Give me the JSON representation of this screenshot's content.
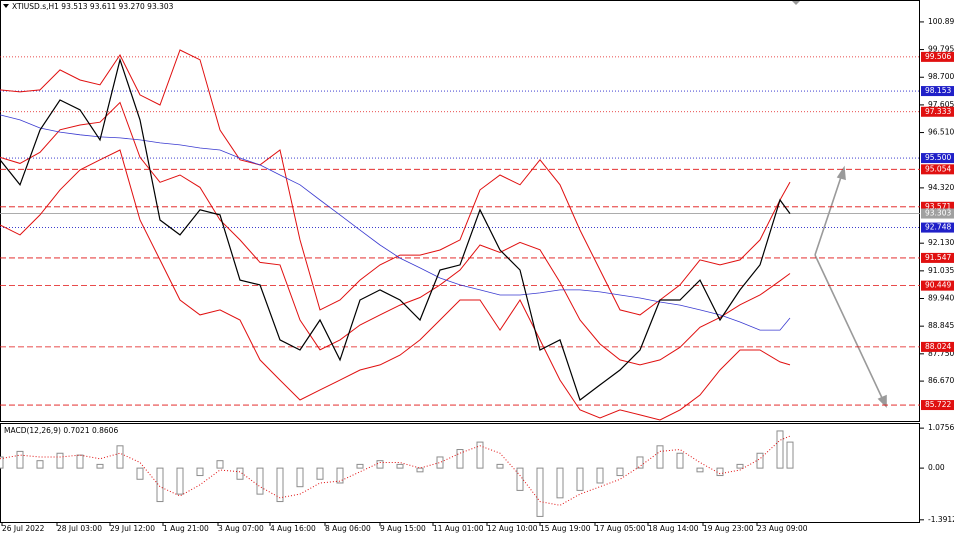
{
  "chart_data": [
    {
      "type": "line",
      "title": "XTIUSD.s,H1  93.513 93.611 93.270 93.303",
      "xlim": [
        0,
        460
      ],
      "x": [
        0,
        10,
        20,
        30,
        40,
        50,
        60,
        70,
        80,
        90,
        100,
        110,
        120,
        130,
        140,
        150,
        160,
        170,
        180,
        190,
        200,
        210,
        220,
        230,
        240,
        250,
        260,
        270,
        280,
        290,
        300,
        310,
        320,
        330,
        340,
        350,
        360,
        370,
        380,
        390,
        395
      ],
      "xticks": [
        {
          "value": 1,
          "label": "26 Jul 2022"
        },
        {
          "value": 28.5,
          "label": "28 Jul 03:00"
        },
        {
          "value": 55,
          "label": "29 Jul 12:00"
        },
        {
          "value": 81.5,
          "label": "1 Aug 21:00"
        },
        {
          "value": 109,
          "label": "3 Aug 07:00"
        },
        {
          "value": 135,
          "label": "4 Aug 16:00"
        },
        {
          "value": 162.5,
          "label": "8 Aug 06:00"
        },
        {
          "value": 190,
          "label": "9 Aug 15:00"
        },
        {
          "value": 216.5,
          "label": "11 Aug 01:00"
        },
        {
          "value": 243.5,
          "label": "12 Aug 10:00"
        },
        {
          "value": 270,
          "label": "15 Aug 19:00"
        },
        {
          "value": 297.5,
          "label": "17 Aug 05:00"
        },
        {
          "value": 324,
          "label": "18 Aug 14:00"
        },
        {
          "value": 351.5,
          "label": "19 Aug 23:00"
        },
        {
          "value": 378.5,
          "label": "23 Aug 09:00"
        }
      ],
      "ylim": [
        85.13,
        101.56
      ],
      "yticks": [
        {
          "value": 100.89,
          "label": "100.890"
        },
        99.795,
        {
          "value": 98.7,
          "label": "98.700"
        },
        97.605,
        {
          "value": 96.51,
          "label": "96.510"
        },
        {
          "value": 94.32,
          "label": "94.320"
        },
        {
          "value": 92.13,
          "label": "92.130"
        },
        91.035,
        {
          "value": 89.94,
          "label": "89.940"
        },
        88.845,
        {
          "value": 87.75,
          "label": "87.750"
        },
        {
          "value": 86.67,
          "label": "86.670"
        }
      ],
      "series": [
        {
          "color": "#e01010",
          "width": 1,
          "values": [
            98.2,
            98.12,
            98.2,
            98.99,
            98.59,
            98.4,
            99.58,
            98.0,
            97.6,
            99.78,
            99.39,
            96.61,
            95.43,
            95.23,
            95.82,
            92.26,
            89.49,
            89.88,
            90.67,
            91.27,
            91.66,
            91.66,
            91.86,
            92.26,
            94.24,
            94.83,
            94.44,
            95.43,
            94.44,
            92.65,
            91.07,
            89.49,
            89.29,
            89.88,
            90.48,
            91.47,
            91.27,
            91.47,
            92.26,
            93.84,
            94.55
          ]
        },
        {
          "color": "#e01010",
          "width": 1,
          "values": [
            95.53,
            95.29,
            95.73,
            96.62,
            96.81,
            96.92,
            97.7,
            95.53,
            94.54,
            94.83,
            94.34,
            93.05,
            92.26,
            91.37,
            91.27,
            89.09,
            87.91,
            88.3,
            88.89,
            89.29,
            89.68,
            89.98,
            90.48,
            91.07,
            92.06,
            91.76,
            92.16,
            91.87,
            90.58,
            89.09,
            88.14,
            87.51,
            87.31,
            87.51,
            88.01,
            88.8,
            89.19,
            89.69,
            90.08,
            90.64,
            90.93
          ]
        },
        {
          "color": "#e01010",
          "width": 1,
          "values": [
            92.85,
            92.46,
            93.25,
            94.24,
            95.03,
            95.43,
            95.82,
            93.05,
            91.47,
            89.88,
            89.29,
            89.49,
            89.09,
            87.51,
            86.71,
            85.92,
            86.32,
            86.71,
            87.11,
            87.31,
            87.7,
            88.3,
            89.09,
            89.88,
            89.88,
            88.69,
            89.88,
            88.3,
            86.71,
            85.53,
            85.21,
            85.53,
            85.33,
            85.13,
            85.53,
            86.12,
            87.11,
            87.9,
            87.9,
            87.43,
            87.31
          ]
        },
        {
          "color": "#3a3ad0",
          "width": 0.8,
          "values": [
            97.21,
            97.01,
            96.69,
            96.53,
            96.42,
            96.34,
            96.3,
            96.22,
            96.1,
            96.02,
            95.9,
            95.82,
            95.5,
            95.23,
            94.83,
            94.44,
            93.84,
            93.25,
            92.65,
            92.06,
            91.54,
            91.15,
            90.75,
            90.48,
            90.28,
            90.08,
            90.08,
            90.16,
            90.28,
            90.28,
            90.2,
            90.08,
            89.96,
            89.8,
            89.68,
            89.49,
            89.29,
            89.01,
            88.69,
            88.69,
            89.17
          ]
        },
        {
          "color": "#000000",
          "width": 1.2,
          "values": [
            95.43,
            94.44,
            96.61,
            97.8,
            97.41,
            96.22,
            99.39,
            97.01,
            93.05,
            92.46,
            93.45,
            93.25,
            90.67,
            90.48,
            88.3,
            87.9,
            89.09,
            87.51,
            89.88,
            90.28,
            89.88,
            89.09,
            91.07,
            91.27,
            93.45,
            91.86,
            91.07,
            87.9,
            88.3,
            85.92,
            86.52,
            87.11,
            87.9,
            89.88,
            89.88,
            90.67,
            89.09,
            90.28,
            91.27,
            93.84,
            93.3
          ]
        }
      ],
      "levels": [
        {
          "value": 99.506,
          "color": "#e01010",
          "style": "dotted"
        },
        {
          "value": 98.153,
          "color": "#2020c8",
          "style": "dotted"
        },
        {
          "value": 97.333,
          "color": "#e01010",
          "style": "dotted"
        },
        {
          "value": 95.5,
          "label": "95.500",
          "color": "#2020c8",
          "style": "dotted"
        },
        {
          "value": 95.054,
          "color": "#e01010",
          "style": "dashed"
        },
        {
          "value": 93.571,
          "color": "#e01010",
          "style": "dashed"
        },
        {
          "value": 93.303,
          "color": "#a0a0a0",
          "style": "solid"
        },
        {
          "value": 92.748,
          "color": "#2020c8",
          "style": "dotted"
        },
        {
          "value": 91.547,
          "color": "#e01010",
          "style": "dashed"
        },
        {
          "value": 90.449,
          "color": "#e01010",
          "style": "dashed"
        },
        {
          "value": 88.024,
          "color": "#e01010",
          "style": "dashed"
        },
        {
          "value": 85.722,
          "color": "#e01010",
          "style": "dashed"
        }
      ]
    },
    {
      "type": "bar",
      "title": "MACD(12,26,9) 0.7021 0.8606",
      "xlim": [
        0,
        460
      ],
      "x": [
        0,
        10,
        20,
        30,
        40,
        50,
        60,
        70,
        80,
        90,
        100,
        110,
        120,
        130,
        140,
        150,
        160,
        170,
        180,
        190,
        200,
        210,
        220,
        230,
        240,
        250,
        260,
        270,
        280,
        290,
        300,
        310,
        320,
        330,
        340,
        350,
        360,
        370,
        380,
        390,
        395
      ],
      "ylim": [
        -1.45,
        1.16
      ],
      "yticks": [
        1.0756,
        {
          "value": 0,
          "label": "0.00"
        },
        -1.3912
      ],
      "series": [
        {
          "type": "bar",
          "color": "#8c8c8c",
          "values": [
            0.3,
            0.45,
            0.2,
            0.4,
            0.35,
            0.1,
            0.6,
            -0.3,
            -0.9,
            -0.7,
            -0.2,
            0.2,
            -0.3,
            -0.7,
            -0.9,
            -0.5,
            -0.3,
            -0.4,
            0.1,
            0.2,
            0.1,
            -0.1,
            0.3,
            0.5,
            0.7,
            0.1,
            -0.6,
            -1.3,
            -0.8,
            -0.6,
            -0.4,
            -0.2,
            0.3,
            0.6,
            0.4,
            -0.1,
            -0.2,
            0.1,
            0.4,
            1.0,
            0.7
          ]
        },
        {
          "type": "line",
          "style": "dotted",
          "width": 1,
          "color": "#e01010",
          "values": [
            0.25,
            0.35,
            0.3,
            0.3,
            0.35,
            0.25,
            0.4,
            0.15,
            -0.5,
            -0.75,
            -0.45,
            -0.05,
            -0.1,
            -0.5,
            -0.8,
            -0.7,
            -0.4,
            -0.35,
            -0.1,
            0.15,
            0.15,
            0.0,
            0.15,
            0.4,
            0.6,
            0.4,
            -0.2,
            -0.9,
            -1.0,
            -0.7,
            -0.5,
            -0.3,
            0.05,
            0.45,
            0.5,
            0.15,
            -0.15,
            -0.05,
            0.25,
            0.75,
            0.86
          ]
        }
      ]
    }
  ]
}
